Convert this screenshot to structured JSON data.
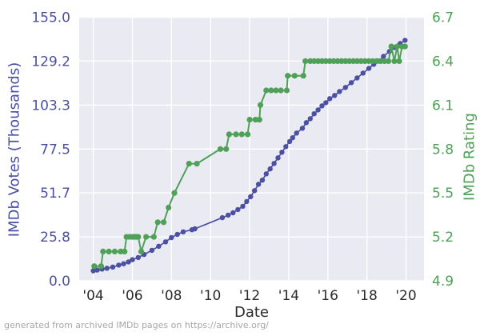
{
  "chart_data": {
    "type": "line",
    "title": "",
    "xlabel": "Date",
    "ylabel_left": "IMDb Votes (Thousands)",
    "ylabel_right": "IMDb Rating",
    "footer": "generated from archived IMDb pages on https://archive.org/",
    "grid": true,
    "legend": "none",
    "plot_bg": "#eaeaf2",
    "grid_color": "#ffffff",
    "axis_colors": {
      "left": "#4c50a2",
      "right": "#4ea156",
      "x": "#2b2b2b",
      "footer": "#a6a6a6"
    },
    "xlim": [
      2003.28,
      2020.92
    ],
    "ylim_left": [
      0.0,
      155.0
    ],
    "ylim_right": [
      4.9,
      6.7
    ],
    "x_ticks": {
      "values": [
        2004,
        2006,
        2008,
        2010,
        2012,
        2014,
        2016,
        2018,
        2020
      ],
      "labels": [
        "'04",
        "'06",
        "'08",
        "'10",
        "'12",
        "'14",
        "'16",
        "'18",
        "'20"
      ]
    },
    "y_left_ticks": {
      "values": [
        155.0,
        129.2,
        103.3,
        77.5,
        51.7,
        25.8,
        0.0
      ],
      "labels": [
        "155.0",
        "129.2",
        "103.3",
        "77.5",
        "51.7",
        "25.8",
        "0.0"
      ]
    },
    "y_right_ticks": {
      "values": [
        6.7,
        6.4,
        6.1,
        5.8,
        5.5,
        5.2,
        4.9
      ],
      "labels": [
        "6.7",
        "6.4",
        "6.1",
        "5.8",
        "5.5",
        "5.2",
        "4.9"
      ]
    },
    "series": [
      {
        "name": "IMDb Votes (Thousands)",
        "axis": "left",
        "color": "#4c50a2",
        "line_width": 1.7,
        "marker_radius": 3.2,
        "x": [
          2004.0,
          2004.2,
          2004.45,
          2004.7,
          2005.0,
          2005.3,
          2005.55,
          2005.8,
          2006.0,
          2006.3,
          2006.6,
          2007.0,
          2007.35,
          2007.7,
          2008.0,
          2008.3,
          2008.6,
          2009.05,
          2009.2,
          2010.6,
          2010.9,
          2011.15,
          2011.4,
          2011.65,
          2011.85,
          2012.05,
          2012.25,
          2012.45,
          2012.65,
          2012.85,
          2013.05,
          2013.25,
          2013.45,
          2013.65,
          2013.85,
          2014.05,
          2014.2,
          2014.4,
          2014.7,
          2014.9,
          2015.1,
          2015.3,
          2015.5,
          2015.7,
          2015.9,
          2016.1,
          2016.35,
          2016.6,
          2016.9,
          2017.2,
          2017.5,
          2017.8,
          2018.1,
          2018.35,
          2018.6,
          2018.85,
          2019.15,
          2019.4,
          2019.7,
          2019.95
        ],
        "y": [
          5.9,
          6.3,
          6.9,
          7.4,
          8.1,
          9.2,
          10.0,
          11.1,
          12.4,
          13.7,
          15.5,
          17.9,
          20.3,
          22.9,
          25.4,
          27.3,
          28.8,
          30.0,
          30.6,
          37.1,
          38.6,
          40.0,
          41.9,
          43.8,
          46.6,
          49.5,
          53.0,
          56.8,
          59.2,
          62.9,
          65.8,
          69.0,
          72.3,
          75.6,
          78.9,
          81.9,
          84.1,
          86.9,
          89.7,
          93.0,
          95.3,
          98.2,
          100.5,
          102.9,
          104.7,
          107.1,
          109.0,
          111.3,
          113.7,
          116.5,
          119.3,
          122.1,
          124.9,
          127.3,
          129.2,
          132.0,
          134.8,
          137.2,
          139.5,
          141.4
        ]
      },
      {
        "name": "IMDb Rating",
        "axis": "right",
        "color": "#4ea156",
        "line_width": 2.0,
        "marker_radius": 3.6,
        "x": [
          2004.05,
          2004.4,
          2004.5,
          2004.8,
          2005.1,
          2005.4,
          2005.6,
          2005.7,
          2005.85,
          2006.0,
          2006.1,
          2006.2,
          2006.3,
          2006.45,
          2006.7,
          2007.1,
          2007.3,
          2007.6,
          2007.85,
          2008.15,
          2008.9,
          2009.3,
          2010.5,
          2010.8,
          2010.95,
          2011.3,
          2011.6,
          2011.9,
          2012.0,
          2012.3,
          2012.5,
          2012.55,
          2012.85,
          2013.1,
          2013.35,
          2013.6,
          2013.9,
          2013.95,
          2014.3,
          2014.75,
          2014.85,
          2015.1,
          2015.3,
          2015.5,
          2015.7,
          2015.9,
          2016.1,
          2016.3,
          2016.5,
          2016.7,
          2016.9,
          2017.1,
          2017.3,
          2017.5,
          2017.7,
          2017.9,
          2018.1,
          2018.3,
          2018.5,
          2018.7,
          2018.9,
          2019.1,
          2019.25,
          2019.4,
          2019.55,
          2019.65,
          2019.8,
          2019.95
        ],
        "y": [
          5.0,
          5.0,
          5.1,
          5.1,
          5.1,
          5.1,
          5.1,
          5.2,
          5.2,
          5.2,
          5.2,
          5.2,
          5.2,
          5.1,
          5.2,
          5.2,
          5.3,
          5.3,
          5.4,
          5.5,
          5.7,
          5.7,
          5.8,
          5.8,
          5.9,
          5.9,
          5.9,
          5.9,
          6.0,
          6.0,
          6.0,
          6.1,
          6.2,
          6.2,
          6.2,
          6.2,
          6.2,
          6.3,
          6.3,
          6.3,
          6.4,
          6.4,
          6.4,
          6.4,
          6.4,
          6.4,
          6.4,
          6.4,
          6.4,
          6.4,
          6.4,
          6.4,
          6.4,
          6.4,
          6.4,
          6.4,
          6.4,
          6.4,
          6.4,
          6.4,
          6.4,
          6.4,
          6.5,
          6.4,
          6.5,
          6.4,
          6.5,
          6.5
        ]
      }
    ]
  }
}
